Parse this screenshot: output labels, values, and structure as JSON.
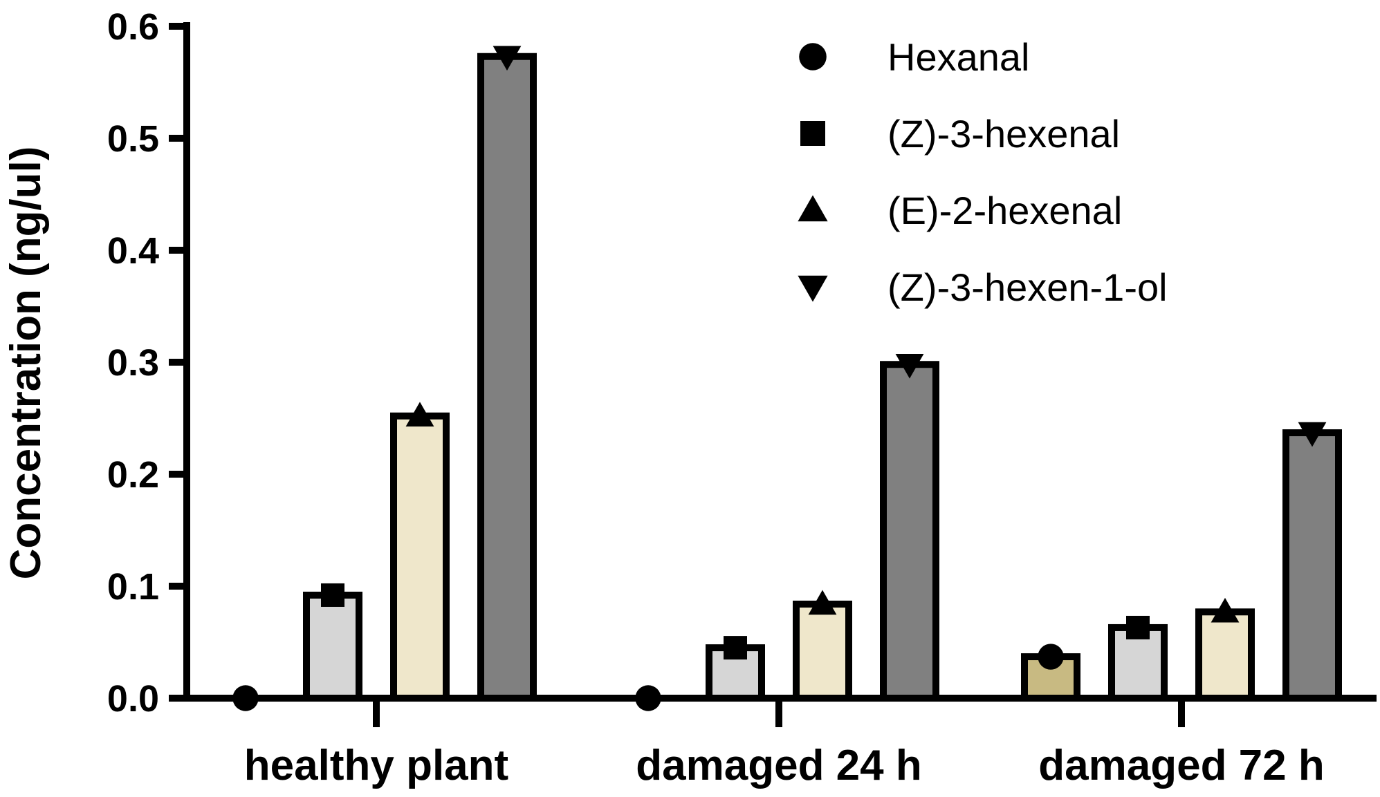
{
  "chart_data": {
    "type": "bar",
    "title": "",
    "xlabel": "",
    "ylabel": "Concentration (ng/ul)",
    "ylim": [
      0,
      0.6
    ],
    "yticks": [
      "0.0",
      "0.1",
      "0.2",
      "0.3",
      "0.4",
      "0.5",
      "0.6"
    ],
    "categories": [
      "healthy plant",
      "damaged 24 h",
      "damaged 72 h"
    ],
    "legend_position": "top-right",
    "grid": false,
    "series": [
      {
        "name": "Hexanal",
        "marker": "circle",
        "color": "#c8ba82",
        "values": [
          0.0,
          0.0,
          0.037
        ]
      },
      {
        "name": "(Z)-3-hexenal",
        "marker": "square",
        "color": "#d6d6d6",
        "values": [
          0.092,
          0.045,
          0.063
        ]
      },
      {
        "name": "(E)-2-hexenal",
        "marker": "triangle-up",
        "color": "#efe7cb",
        "values": [
          0.252,
          0.084,
          0.077
        ]
      },
      {
        "name": "(Z)-3-hexen-1-ol",
        "marker": "triangle-down",
        "color": "#808080",
        "values": [
          0.573,
          0.298,
          0.237
        ]
      }
    ]
  }
}
